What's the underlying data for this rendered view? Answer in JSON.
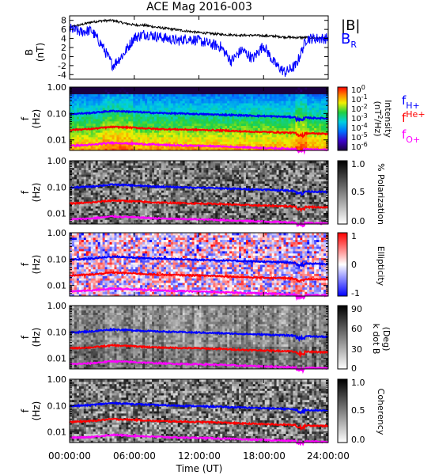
{
  "title": "ACE Mag 2016-003",
  "xlabel": "Time (UT)",
  "xticks": [
    "00:00:00",
    "06:00:00",
    "12:00:00",
    "18:00:00",
    "24:00:00"
  ],
  "colors": {
    "bmag": "#000000",
    "br": "#0000ff",
    "fH": "#0000ff",
    "fHe": "#ff0000",
    "fO": "#ff00ff"
  },
  "b_panel": {
    "ylabel_1": "B",
    "ylabel_2": "(nT)",
    "yticks": [
      "-4",
      "-2",
      "0",
      "2",
      "4",
      "6",
      "8"
    ],
    "legend_bmag": "|B|",
    "legend_br": "B",
    "legend_br_sub": "R"
  },
  "f_ylabel_1": "f",
  "f_ylabel_2": "(Hz)",
  "f_yticks": [
    "1.00",
    "0.10",
    "0.01"
  ],
  "legend": {
    "fH_main": "f",
    "fH_sub": "H+",
    "fHe_main": "f",
    "fHe_sub": "He+",
    "fO_main": "f",
    "fO_sub": "O+"
  },
  "cbar": {
    "intensity": {
      "label": "Intensity",
      "unit_pre": "(nT",
      "unit_exp": "2",
      "unit_post": "/Hz)",
      "ticks": [
        {
          "b": "10",
          "e": "0"
        },
        {
          "b": "10",
          "e": "-1"
        },
        {
          "b": "10",
          "e": "-2"
        },
        {
          "b": "10",
          "e": "-3"
        },
        {
          "b": "10",
          "e": "-4"
        },
        {
          "b": "10",
          "e": "-5"
        },
        {
          "b": "10",
          "e": "-6"
        }
      ]
    },
    "polarization": {
      "label": "% Polarization",
      "ticks": [
        "1.0",
        "0.5",
        "0.0"
      ]
    },
    "ellipticity": {
      "label": "Ellipticity",
      "ticks": [
        "1",
        "0",
        "-1"
      ]
    },
    "kdotb": {
      "label_1": "k dot B",
      "label_2": "(Deg)",
      "ticks": [
        "90",
        "60",
        "30",
        "0"
      ]
    },
    "coherency": {
      "label": "Coherency",
      "ticks": [
        "1.0",
        "0.5",
        "0.0"
      ]
    }
  },
  "chart_data": [
    {
      "type": "line",
      "title": "ACE Mag 2016-003",
      "xlabel": "Time (UT)",
      "ylabel": "B (nT)",
      "xlim": [
        0,
        24
      ],
      "ylim": [
        -5,
        9
      ],
      "x": [
        0,
        1,
        2,
        3,
        4,
        5,
        6,
        7,
        8,
        9,
        10,
        11,
        12,
        13,
        14,
        15,
        16,
        17,
        18,
        19,
        20,
        21,
        22,
        23,
        24
      ],
      "series": [
        {
          "name": "|B|",
          "values": [
            6.5,
            7.0,
            7.6,
            7.9,
            8.0,
            7.4,
            7.0,
            6.9,
            6.5,
            6.2,
            5.9,
            5.6,
            5.3,
            5.1,
            4.9,
            4.8,
            4.7,
            4.7,
            4.6,
            4.5,
            4.3,
            4.2,
            4.2,
            4.1,
            4.1
          ]
        },
        {
          "name": "B_R",
          "values": [
            6.2,
            5.4,
            5.8,
            2.5,
            -2.0,
            0.5,
            4.2,
            5.0,
            4.5,
            4.0,
            3.5,
            4.0,
            3.5,
            2.8,
            2.2,
            -1.0,
            1.5,
            -0.5,
            2.5,
            -1.5,
            -3.5,
            -2.0,
            4.0,
            4.0,
            4.0
          ]
        }
      ]
    },
    {
      "type": "heatmap",
      "ylabel": "f (Hz)",
      "yscale": "log",
      "ylim": [
        0.004,
        1.0
      ],
      "colorbar": "Intensity (nT^2/Hz)",
      "colorbar_range": [
        1e-06,
        1
      ],
      "x": [
        0,
        2,
        4,
        6,
        8,
        10,
        12,
        14,
        16,
        18,
        20,
        21.5,
        24
      ],
      "series": [
        {
          "name": "f_H+",
          "values": [
            0.095,
            0.105,
            0.125,
            0.115,
            0.105,
            0.1,
            0.095,
            0.09,
            0.085,
            0.08,
            0.075,
            0.07,
            0.065
          ]
        },
        {
          "name": "f_He+",
          "values": [
            0.024,
            0.026,
            0.031,
            0.029,
            0.026,
            0.025,
            0.024,
            0.023,
            0.021,
            0.02,
            0.019,
            0.018,
            0.017
          ]
        },
        {
          "name": "f_O+",
          "values": [
            0.006,
            0.0065,
            0.0078,
            0.0072,
            0.0066,
            0.0062,
            0.006,
            0.0057,
            0.0053,
            0.005,
            0.0047,
            0.0045,
            0.0042
          ]
        }
      ]
    },
    {
      "type": "heatmap",
      "ylabel": "f (Hz)",
      "yscale": "log",
      "ylim": [
        0.004,
        1.0
      ],
      "colorbar": "% Polarization",
      "colorbar_range": [
        0,
        1.0
      ]
    },
    {
      "type": "heatmap",
      "ylabel": "f (Hz)",
      "yscale": "log",
      "ylim": [
        0.004,
        1.0
      ],
      "colorbar": "Ellipticity",
      "colorbar_range": [
        -1,
        1
      ]
    },
    {
      "type": "heatmap",
      "ylabel": "f (Hz)",
      "yscale": "log",
      "ylim": [
        0.004,
        1.0
      ],
      "colorbar": "k dot B (Deg)",
      "colorbar_range": [
        0,
        90
      ]
    },
    {
      "type": "heatmap",
      "ylabel": "f (Hz)",
      "yscale": "log",
      "ylim": [
        0.004,
        1.0
      ],
      "colorbar": "Coherency",
      "colorbar_range": [
        0,
        1.0
      ]
    }
  ]
}
